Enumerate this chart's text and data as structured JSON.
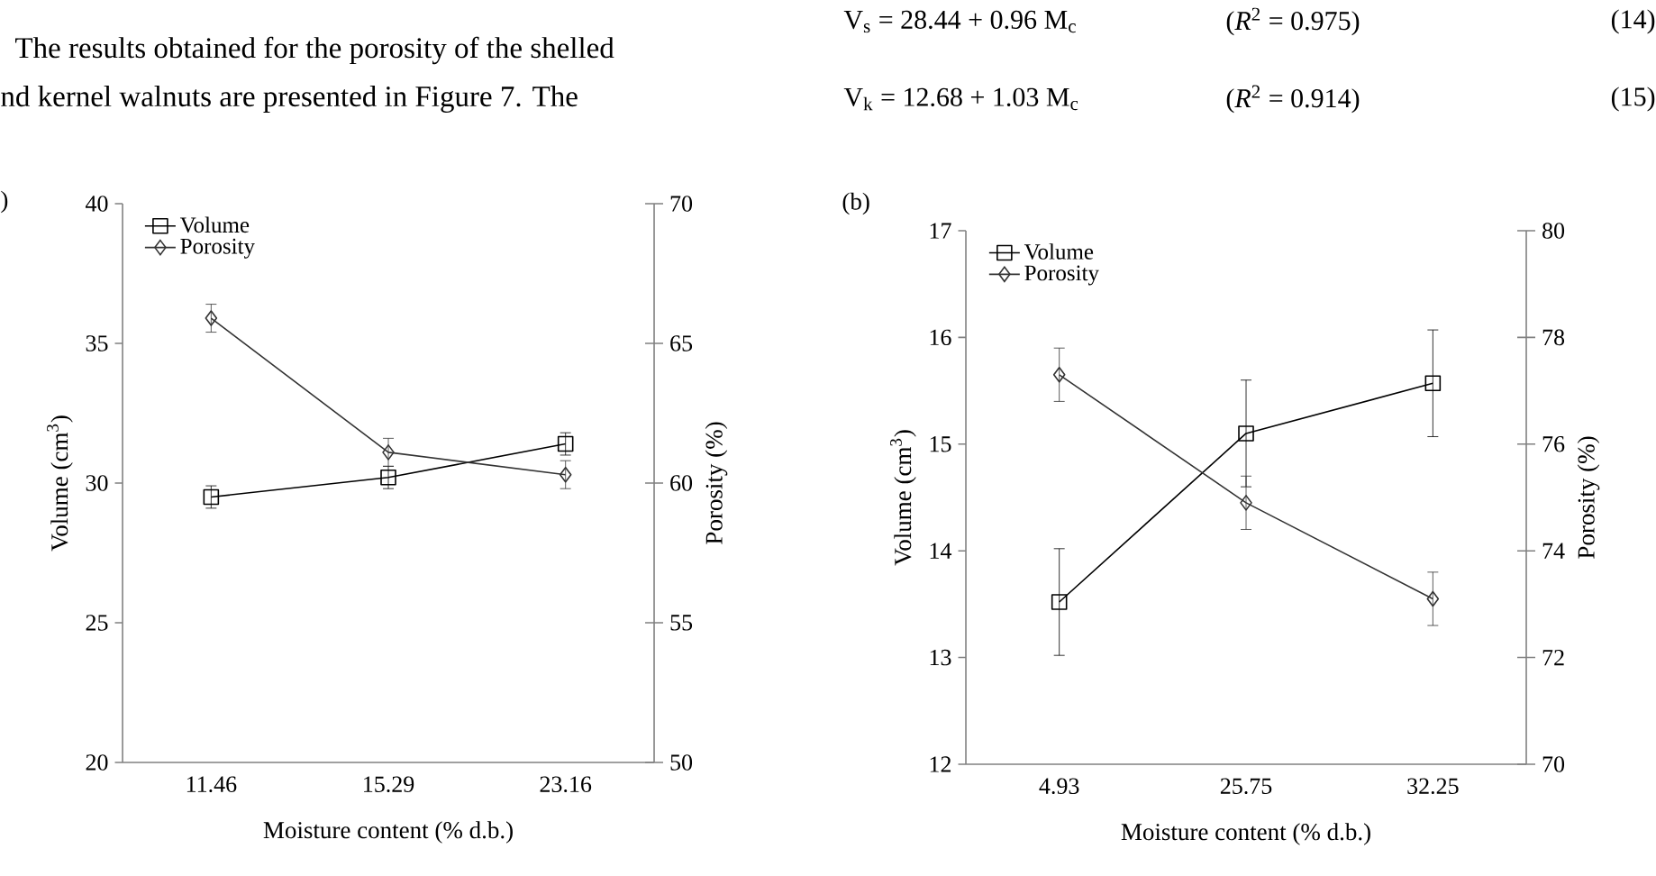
{
  "chart_data": [
    {
      "type": "line",
      "title": ")",
      "xlabel": "Moisture content (% d.b.)",
      "ylabel": "Volume (cm$^{3}$)",
      "y2label": "Porosity (%)",
      "categories": [
        "11.46",
        "15.29",
        "23.16"
      ],
      "ylim": [
        20,
        40
      ],
      "yticks": [
        20,
        25,
        30,
        35,
        40
      ],
      "y2lim": [
        50,
        70
      ],
      "y2ticks": [
        50,
        55,
        60,
        65,
        70
      ],
      "legend": "top left",
      "series": [
        {
          "name": "Volume",
          "color": "#000000",
          "marker": "square",
          "values": [
            29.5,
            30.2,
            31.4
          ],
          "errors": [
            0.4,
            0.4,
            0.4
          ]
        },
        {
          "name": "Porosity",
          "color": "#333333",
          "marker": "diamond",
          "axis": "y2",
          "values": [
            65.9,
            61.1,
            60.3
          ],
          "errors": [
            0.5,
            0.5,
            0.5
          ]
        }
      ],
      "annotations": [
        "The results obtained for the porosity of the shelled",
        "nd kernel walnuts are presented in Figure 7. The"
      ]
    },
    {
      "type": "line",
      "title": "(b)",
      "xlabel": "Moisture content (% d.b.)",
      "ylabel": "Volume (cm$^{3}$)",
      "y2label": "Porosity (%)",
      "categories": [
        "4.93",
        "25.75",
        "32.25"
      ],
      "ylim": [
        12,
        17
      ],
      "yticks": [
        12,
        13,
        14,
        15,
        16,
        17
      ],
      "y2lim": [
        70,
        80
      ],
      "y2ticks": [
        70,
        72,
        74,
        76,
        78,
        80
      ],
      "legend": "top left",
      "series": [
        {
          "name": "Volume",
          "color": "#000000",
          "marker": "square",
          "values": [
            13.52,
            15.1,
            15.57
          ],
          "errors": [
            0.5,
            0.5,
            0.5
          ]
        },
        {
          "name": "Porosity",
          "color": "#333333",
          "marker": "diamond",
          "axis": "y2",
          "values": [
            77.3,
            74.9,
            73.1
          ],
          "errors": [
            0.5,
            0.5,
            0.5
          ]
        }
      ],
      "annotations": [
        "V$_{s}$ = 28.44 + 0.96 M$_{c}$",
        "(*R*$^{2}$ = 0.975)",
        "(14)",
        "V$_{k}$ = 12.68 + 1.03 M$_{c}$",
        "(*R*$^{2}$ = 0.914)",
        "(15)"
      ]
    }
  ]
}
